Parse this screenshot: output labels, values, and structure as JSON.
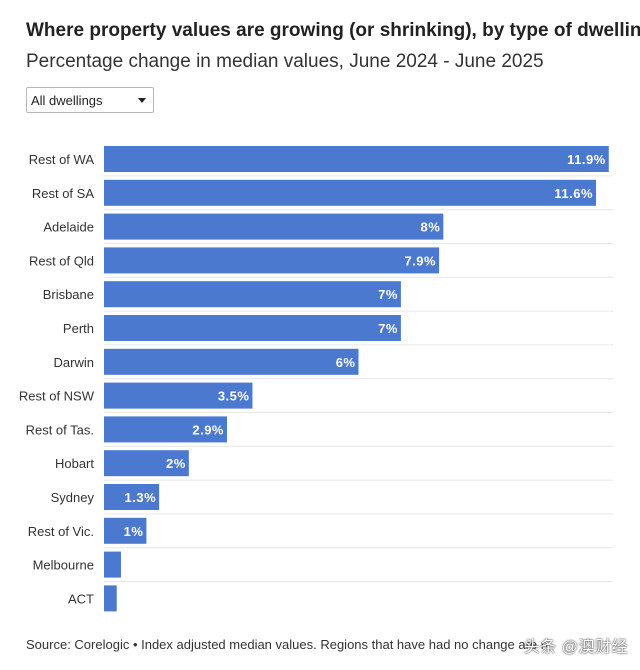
{
  "title": "Where property values are growing (or shrinking), by type of dwelling",
  "subtitle": "Percentage change in median values, June 2024 - June 2025",
  "dropdown": {
    "selected": "All dwellings",
    "icon": "caret-down-icon"
  },
  "footer": {
    "source": "Source: Corelogic • Index adjusted median values. Regions that have had no change are n"
  },
  "watermark": "头条 @澳财经",
  "colors": {
    "bar": "#4b79cf",
    "bar_label": "#ffffff",
    "gridline": "#e6e6e6",
    "text": "#333333"
  },
  "chart_data": {
    "type": "bar",
    "orientation": "horizontal",
    "categories": [
      "Rest of WA",
      "Rest of SA",
      "Adelaide",
      "Rest of Qld",
      "Brisbane",
      "Perth",
      "Darwin",
      "Rest of NSW",
      "Rest of Tas.",
      "Hobart",
      "Sydney",
      "Rest of Vic.",
      "Melbourne",
      "ACT"
    ],
    "values": [
      11.9,
      11.6,
      8,
      7.9,
      7,
      7,
      6,
      3.5,
      2.9,
      2,
      1.3,
      1,
      0.4,
      0.3
    ],
    "labels": [
      "11.9%",
      "11.6%",
      "8%",
      "7.9%",
      "7%",
      "7%",
      "6%",
      "3.5%",
      "2.9%",
      "2%",
      "1.3%",
      "1%",
      "",
      ""
    ],
    "xlim": [
      0,
      12
    ],
    "grid": true,
    "legend": false
  }
}
